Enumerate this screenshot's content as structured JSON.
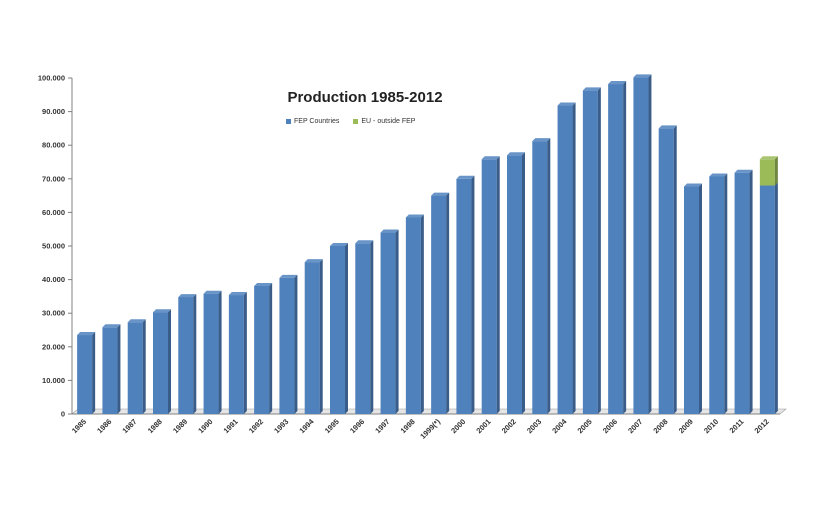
{
  "chart_data": {
    "type": "bar",
    "stacked": true,
    "title": "Production 1985-2012",
    "xlabel": "",
    "ylabel": "",
    "ylim": [
      0,
      100000
    ],
    "y_ticks": [
      "0",
      "10.000",
      "20.000",
      "30.000",
      "40.000",
      "50.000",
      "60.000",
      "70.000",
      "80.000",
      "90.000",
      "100.000"
    ],
    "legend_position": "top-center",
    "grid": false,
    "categories": [
      "1985",
      "1986",
      "1987",
      "1988",
      "1989",
      "1990",
      "1991",
      "1992",
      "1993",
      "1994",
      "1995",
      "1996",
      "1997",
      "1998",
      "1999(*)",
      "2000",
      "2001",
      "2002",
      "2003",
      "2004",
      "2005",
      "2006",
      "2007",
      "2008",
      "2009",
      "2010",
      "2011",
      "2012"
    ],
    "series": [
      {
        "name": "FEP Countries",
        "color": "#4f81bd",
        "values": [
          23500,
          25800,
          27300,
          30300,
          34800,
          35800,
          35400,
          38100,
          40500,
          45200,
          50000,
          50800,
          54000,
          58500,
          65000,
          70000,
          75800,
          77000,
          81200,
          91800,
          96300,
          98200,
          100200,
          85000,
          67700,
          70700,
          71800,
          68000
        ]
      },
      {
        "name": "EU - outside FEP",
        "color": "#9bbb59",
        "values": [
          0,
          0,
          0,
          0,
          0,
          0,
          0,
          0,
          0,
          0,
          0,
          0,
          0,
          0,
          0,
          0,
          0,
          0,
          0,
          0,
          0,
          0,
          0,
          0,
          0,
          0,
          0,
          7800
        ]
      }
    ]
  }
}
